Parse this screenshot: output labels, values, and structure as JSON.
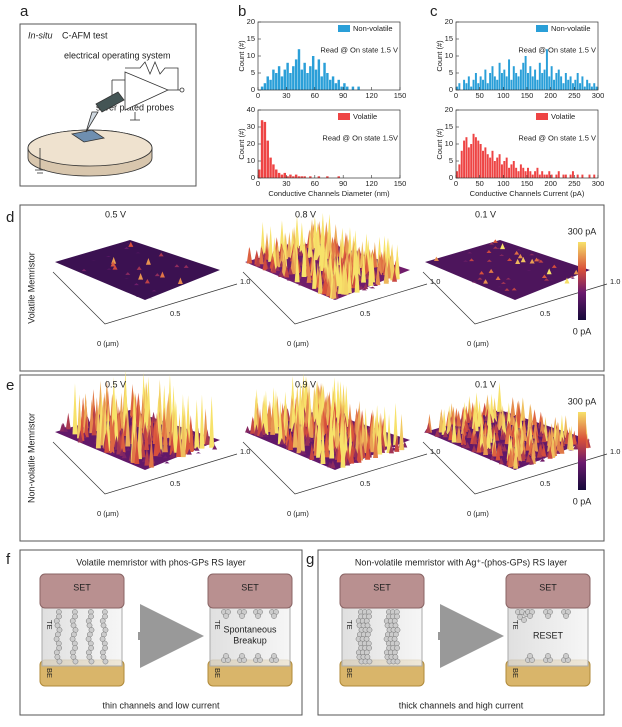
{
  "panel_a": {
    "letter": "a",
    "title_italic": "In-situ",
    "title": "C-AFM test",
    "label_system": "electrical operating system",
    "label_probe": "silver plated probes"
  },
  "panel_b": {
    "letter": "b"
  },
  "panel_c": {
    "letter": "c"
  },
  "panel_d": {
    "letter": "d",
    "row_label": "Volatile Memristor",
    "voltages": [
      "0.5 V",
      "0.8 V",
      "0.1 V"
    ],
    "axis_ticks": [
      "1.0",
      "0.5",
      "0 (μm)"
    ],
    "colorbar_max": "300 pA",
    "colorbar_min": "0 pA"
  },
  "panel_e": {
    "letter": "e",
    "row_label": "Non-volatile Memristor",
    "voltages": [
      "0.5 V",
      "0.9 V",
      "0.1 V"
    ],
    "axis_ticks": [
      "1.0",
      "0.5",
      "0 (μm)"
    ],
    "colorbar_max": "300 pA",
    "colorbar_min": "0 pA"
  },
  "panel_f": {
    "letter": "f",
    "title": "Volatile memristor with phos-GPs RS layer",
    "top_electrode": "SET",
    "te": "TE",
    "be": "BE",
    "note_lines": [
      "Spontaneous",
      "Breakup"
    ],
    "caption": "thin channels and low current"
  },
  "panel_g": {
    "letter": "g",
    "title": "Non-volatile memristor with Ag⁺-(phos-GPs) RS layer",
    "top_electrode": "SET",
    "te": "TE",
    "be": "BE",
    "note_lines": [
      "RESET"
    ],
    "caption": "thick channels and high current"
  },
  "chart_data": [
    {
      "type": "histogram",
      "ylabel": "Count (#)",
      "annotation": "Read @ On state 1.5 V",
      "legend": "upper right",
      "bins": [
        0,
        3,
        6,
        9,
        12,
        15,
        18,
        21,
        24,
        27,
        30,
        33,
        36,
        39,
        42,
        45,
        48,
        51,
        54,
        57,
        60,
        63,
        66,
        69,
        72,
        75,
        78,
        81,
        84,
        87,
        90,
        93,
        96,
        99,
        102,
        105,
        108,
        111,
        114,
        117,
        120,
        123,
        126,
        129,
        132,
        135,
        138,
        141,
        144,
        147,
        150
      ],
      "series": [
        {
          "name": "Non-volatile",
          "color": "#2a9fd8",
          "values": [
            0,
            1,
            2,
            4,
            3,
            6,
            5,
            7,
            4,
            6,
            8,
            5,
            7,
            9,
            12,
            6,
            8,
            5,
            7,
            10,
            6,
            9,
            4,
            8,
            5,
            3,
            4,
            2,
            3,
            1,
            2,
            1,
            0,
            1,
            0,
            1,
            0,
            0,
            0,
            0,
            0,
            0,
            0,
            0,
            0,
            0,
            0,
            0,
            0,
            0
          ]
        }
      ],
      "xlim": [
        0,
        150
      ],
      "xticks": [
        0,
        30,
        60,
        90,
        120,
        150
      ],
      "ylim": [
        0,
        20
      ],
      "yticks": [
        0,
        5,
        10,
        15,
        20
      ]
    },
    {
      "type": "histogram",
      "ylabel": "Count (#)",
      "xlabel": "Conductive Channels Diameter (nm)",
      "annotation": "Read @ On state 1.5V",
      "legend": "upper right",
      "bins": [
        0,
        3,
        6,
        9,
        12,
        15,
        18,
        21,
        24,
        27,
        30,
        33,
        36,
        39,
        42,
        45,
        48,
        51,
        54,
        57,
        60,
        63,
        66,
        69,
        72,
        75,
        78,
        81,
        84,
        87,
        90,
        93,
        96,
        99,
        102,
        105,
        108,
        111,
        114,
        117,
        120,
        123,
        126,
        129,
        132,
        135,
        138,
        141,
        144,
        147,
        150
      ],
      "series": [
        {
          "name": "Volatile",
          "color": "#ee4444",
          "values": [
            5,
            34,
            33,
            22,
            12,
            8,
            5,
            3,
            2,
            3,
            1,
            2,
            1,
            2,
            1,
            1,
            1,
            0,
            1,
            0,
            0,
            1,
            0,
            0,
            1,
            0,
            0,
            0,
            1,
            0,
            0,
            0,
            0,
            0,
            0,
            0,
            0,
            0,
            0,
            0,
            0,
            0,
            0,
            0,
            0,
            0,
            0,
            0,
            0,
            0
          ]
        }
      ],
      "xlim": [
        0,
        150
      ],
      "xticks": [
        0,
        30,
        60,
        90,
        120,
        150
      ],
      "ylim": [
        0,
        40
      ],
      "yticks": [
        0,
        10,
        20,
        30,
        40
      ]
    },
    {
      "type": "histogram",
      "ylabel": "Count (#)",
      "annotation": "Read @ On state 1.5 V",
      "legend": "upper right",
      "bins": [
        0,
        5,
        10,
        15,
        20,
        25,
        30,
        35,
        40,
        45,
        50,
        55,
        60,
        65,
        70,
        75,
        80,
        85,
        90,
        95,
        100,
        105,
        110,
        115,
        120,
        125,
        130,
        135,
        140,
        145,
        150,
        155,
        160,
        165,
        170,
        175,
        180,
        185,
        190,
        195,
        200,
        205,
        210,
        215,
        220,
        225,
        230,
        235,
        240,
        245,
        250,
        255,
        260,
        265,
        270,
        275,
        280,
        285,
        290,
        295,
        300
      ],
      "series": [
        {
          "name": "Non-volatile",
          "color": "#2a9fd8",
          "values": [
            1,
            2,
            0,
            3,
            2,
            4,
            1,
            3,
            5,
            2,
            4,
            3,
            6,
            2,
            5,
            7,
            4,
            3,
            8,
            5,
            6,
            4,
            9,
            3,
            7,
            5,
            4,
            6,
            8,
            10,
            5,
            7,
            4,
            6,
            3,
            8,
            5,
            6,
            12,
            4,
            7,
            3,
            5,
            6,
            4,
            2,
            5,
            3,
            4,
            2,
            3,
            5,
            2,
            4,
            1,
            3,
            2,
            1,
            2,
            1
          ]
        }
      ],
      "xlim": [
        0,
        300
      ],
      "xticks": [
        0,
        50,
        100,
        150,
        200,
        250,
        300
      ],
      "ylim": [
        0,
        20
      ],
      "yticks": [
        0,
        5,
        10,
        15,
        20
      ]
    },
    {
      "type": "histogram",
      "ylabel": "Count (#)",
      "xlabel": "Conductive Channels Current (pA)",
      "annotation": "Read @ On state 1.5 V",
      "legend": "upper right",
      "bins": [
        0,
        5,
        10,
        15,
        20,
        25,
        30,
        35,
        40,
        45,
        50,
        55,
        60,
        65,
        70,
        75,
        80,
        85,
        90,
        95,
        100,
        105,
        110,
        115,
        120,
        125,
        130,
        135,
        140,
        145,
        150,
        155,
        160,
        165,
        170,
        175,
        180,
        185,
        190,
        195,
        200,
        205,
        210,
        215,
        220,
        225,
        230,
        235,
        240,
        245,
        250,
        255,
        260,
        265,
        270,
        275,
        280,
        285,
        290,
        295,
        300
      ],
      "series": [
        {
          "name": "Volatile",
          "color": "#ee4444",
          "values": [
            2,
            4,
            8,
            11,
            12,
            9,
            10,
            13,
            12,
            11,
            10,
            8,
            9,
            7,
            6,
            8,
            5,
            6,
            7,
            4,
            5,
            6,
            3,
            4,
            5,
            3,
            2,
            4,
            3,
            2,
            3,
            2,
            1,
            2,
            3,
            1,
            2,
            1,
            1,
            2,
            1,
            0,
            1,
            2,
            0,
            1,
            1,
            0,
            1,
            2,
            0,
            1,
            0,
            1,
            0,
            0,
            1,
            0,
            1,
            0
          ]
        }
      ],
      "xlim": [
        0,
        300
      ],
      "xticks": [
        0,
        50,
        100,
        150,
        200,
        250,
        300
      ],
      "ylim": [
        0,
        20
      ],
      "yticks": [
        0,
        5,
        10,
        15,
        20
      ]
    }
  ]
}
